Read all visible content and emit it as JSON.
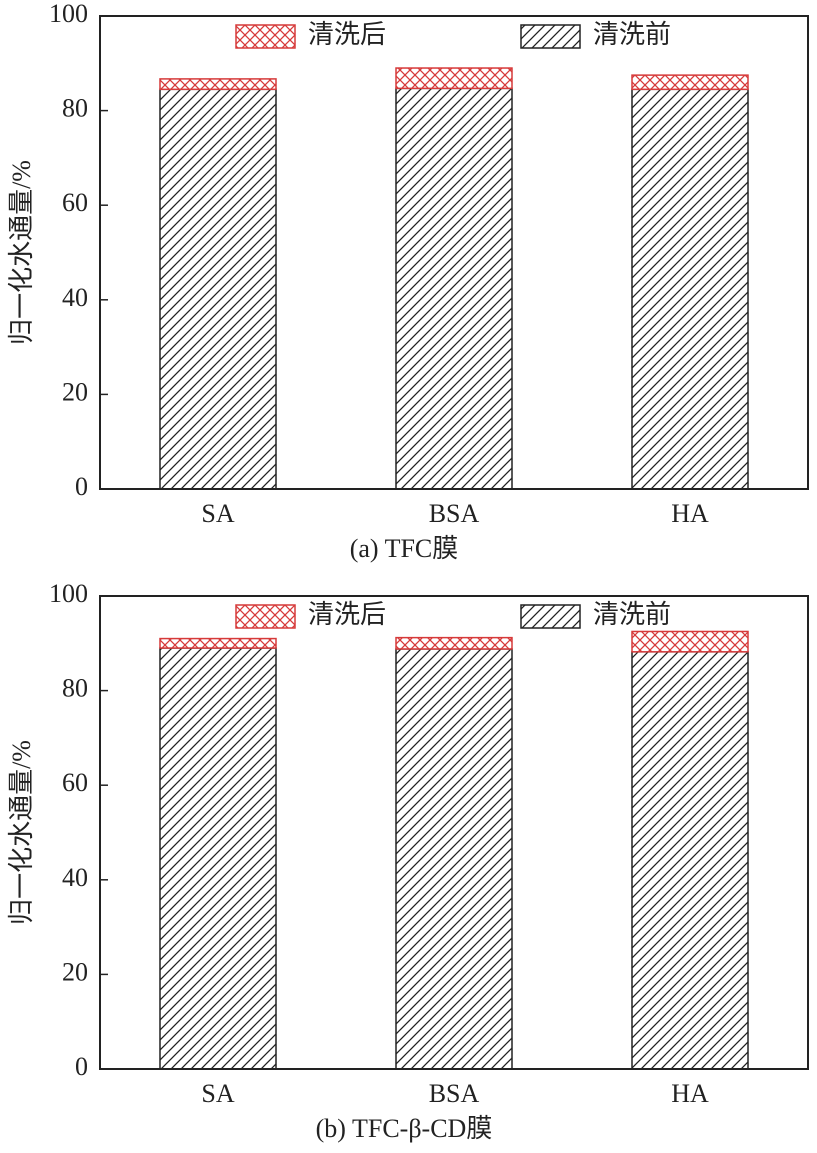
{
  "chart_data": [
    {
      "type": "stacked-bar",
      "title": "(a) TFC膜",
      "y_label": "归一化水通量/%",
      "categories": [
        "SA",
        "BSA",
        "HA"
      ],
      "series": [
        {
          "name": "清洗前",
          "color": "#222222",
          "pattern": "hatch",
          "values": [
            84.5,
            84.7,
            84.5
          ]
        },
        {
          "name": "清洗后",
          "color": "#d63a3a",
          "pattern": "crosshatch",
          "values": [
            2.2,
            4.3,
            3.0
          ]
        }
      ],
      "ylim": [
        0,
        100
      ],
      "yticks": [
        0,
        20,
        40,
        60,
        80,
        100
      ]
    },
    {
      "type": "stacked-bar",
      "title": "(b) TFC-β-CD膜",
      "y_label": "归一化水通量/%",
      "categories": [
        "SA",
        "BSA",
        "HA"
      ],
      "series": [
        {
          "name": "清洗前",
          "color": "#222222",
          "pattern": "hatch",
          "values": [
            89.0,
            88.8,
            88.2
          ]
        },
        {
          "name": "清洗后",
          "color": "#d63a3a",
          "pattern": "crosshatch",
          "values": [
            2.0,
            2.4,
            4.3
          ]
        }
      ],
      "ylim": [
        0,
        100
      ],
      "yticks": [
        0,
        20,
        40,
        60,
        80,
        100
      ]
    }
  ]
}
